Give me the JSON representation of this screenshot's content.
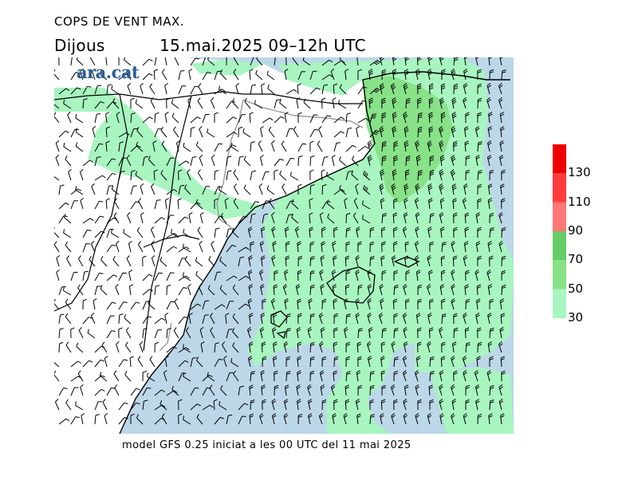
{
  "header": {
    "title": "COPS DE VENT MAX.",
    "day": "Dijous",
    "datetime": "15.mai.2025 09–12h UTC"
  },
  "logo": {
    "text": "ara.cat"
  },
  "footer": {
    "model_info": "model GFS 0.25 iniciat a les 00 UTC del 11 mai 2025"
  },
  "legend": {
    "unit_levels": [
      "30",
      "50",
      "70",
      "90",
      "110",
      "130"
    ],
    "bands": [
      {
        "from": 30,
        "to": 50,
        "color": "#a8f5c0"
      },
      {
        "from": 50,
        "to": 70,
        "color": "#88e288"
      },
      {
        "from": 70,
        "to": 90,
        "color": "#66cc66"
      },
      {
        "from": 90,
        "to": 110,
        "color": "#ff7777"
      },
      {
        "from": 110,
        "to": 130,
        "color": "#ff3b3b"
      },
      {
        "from": 130,
        "to": 150,
        "color": "#ee0000"
      }
    ]
  },
  "map_colors": {
    "land": "#ffffff",
    "sea": "#bcd7e8",
    "gust_30_50": "#a8f5c0",
    "gust_50_70": "#88e288",
    "coast": "#000000",
    "border": "#999999"
  }
}
